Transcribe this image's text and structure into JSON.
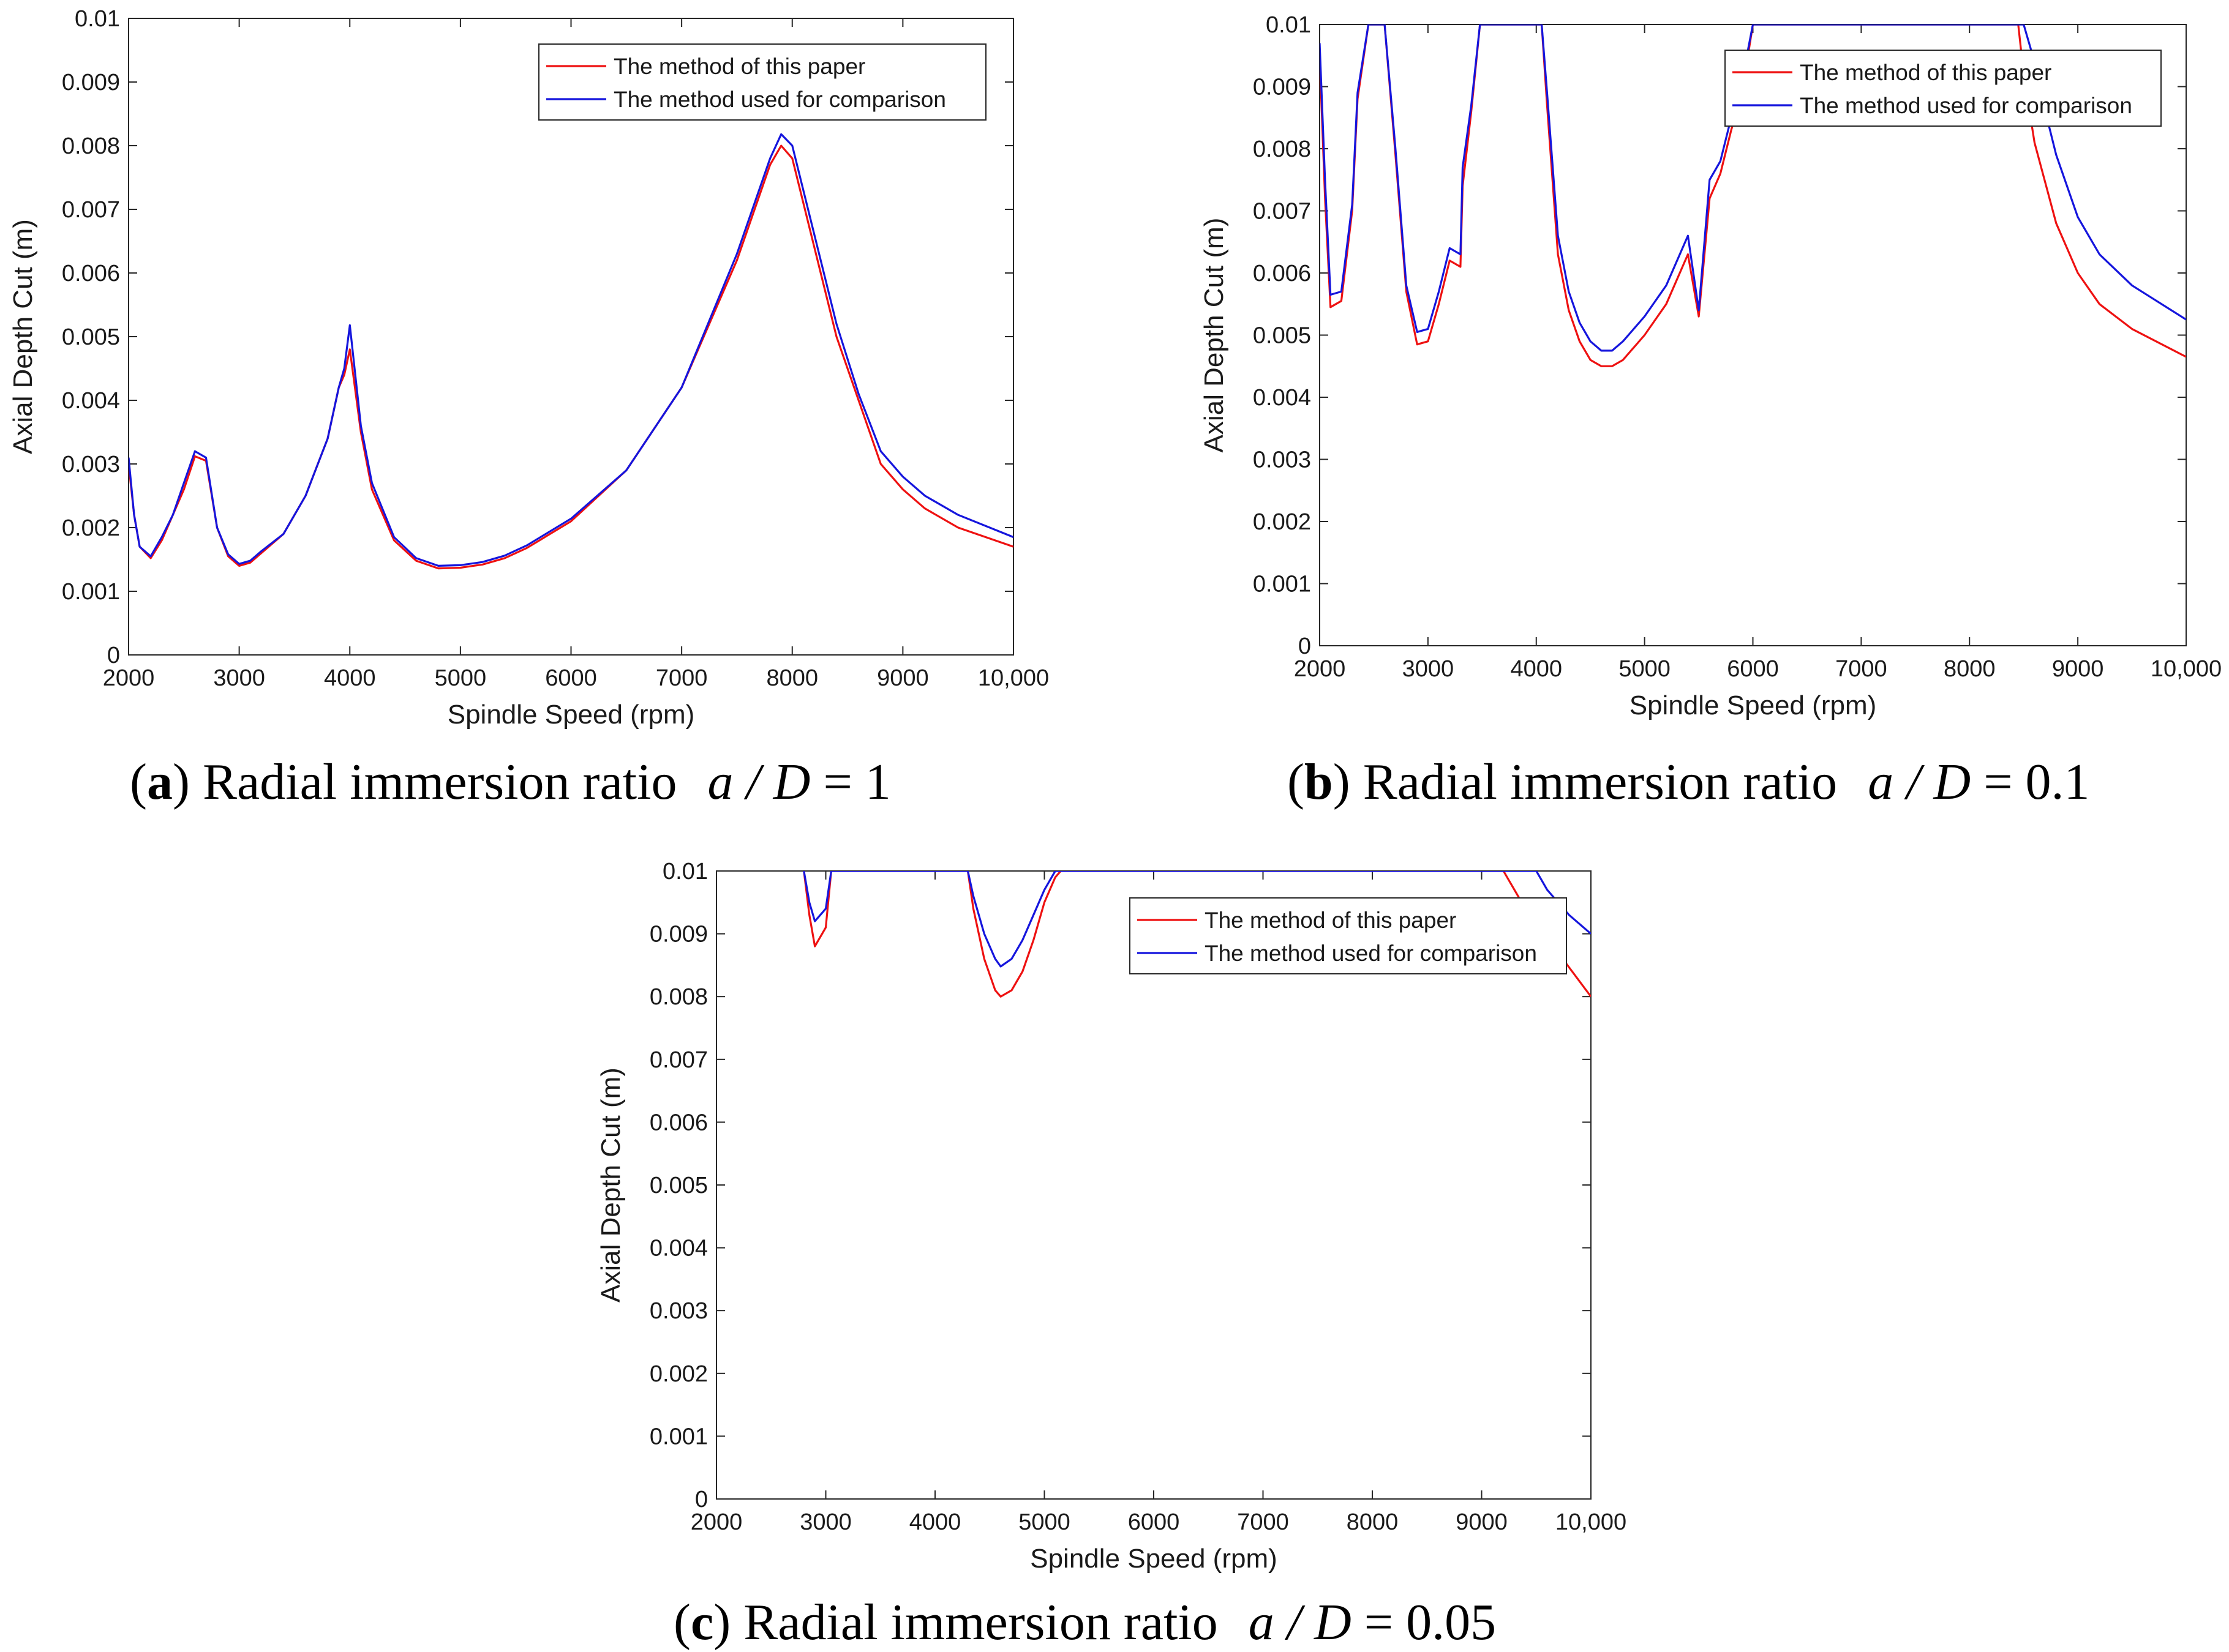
{
  "figure": {
    "colors": {
      "method_paper": "#ee1111",
      "method_comparison": "#1515dd",
      "axes": "#262626"
    }
  },
  "chart_data": [
    {
      "id": "a",
      "type": "line",
      "caption": {
        "letter": "a",
        "text": "Radial immersion ratio",
        "math_lhs": "a / D",
        "math_rhs": "= 1"
      },
      "xlabel": "Spindle Speed (rpm)",
      "ylabel": "Axial Depth Cut (m)",
      "xlim": [
        2000,
        10000
      ],
      "ylim": [
        0,
        0.01
      ],
      "xticks": [
        2000,
        3000,
        4000,
        5000,
        6000,
        7000,
        8000,
        9000,
        10000
      ],
      "xtick_labels": [
        "2000",
        "3000",
        "4000",
        "5000",
        "6000",
        "7000",
        "8000",
        "9000",
        "10,000"
      ],
      "yticks": [
        0,
        0.001,
        0.002,
        0.003,
        0.004,
        0.005,
        0.006,
        0.007,
        0.008,
        0.009,
        0.01
      ],
      "ytick_labels": [
        "0",
        "0.001",
        "0.002",
        "0.003",
        "0.004",
        "0.005",
        "0.006",
        "0.007",
        "0.008",
        "0.009",
        "0.01"
      ],
      "legend_position": "top-right",
      "series": [
        {
          "name": "The method of this paper",
          "color": "#ee1111",
          "x": [
            2000,
            2050,
            2100,
            2200,
            2300,
            2400,
            2500,
            2600,
            2700,
            2800,
            2900,
            3000,
            3100,
            3200,
            3400,
            3600,
            3800,
            3900,
            3950,
            4000,
            4100,
            4200,
            4400,
            4600,
            4800,
            5000,
            5200,
            5400,
            5600,
            6000,
            6500,
            7000,
            7500,
            7800,
            7900,
            8000,
            8200,
            8400,
            8600,
            8800,
            9000,
            9200,
            9500,
            10000
          ],
          "y": [
            0.003,
            0.0022,
            0.0017,
            0.00152,
            0.0018,
            0.0022,
            0.0026,
            0.00312,
            0.00305,
            0.002,
            0.00155,
            0.0014,
            0.00145,
            0.0016,
            0.0019,
            0.0025,
            0.0034,
            0.0042,
            0.0044,
            0.0048,
            0.0035,
            0.0026,
            0.0018,
            0.00148,
            0.00136,
            0.00137,
            0.00142,
            0.00152,
            0.00168,
            0.0021,
            0.0029,
            0.0042,
            0.0062,
            0.0077,
            0.008,
            0.0078,
            0.0064,
            0.005,
            0.004,
            0.003,
            0.0026,
            0.0023,
            0.002,
            0.0017
          ]
        },
        {
          "name": "The method used for comparison",
          "color": "#1515dd",
          "x": [
            2000,
            2050,
            2100,
            2200,
            2300,
            2400,
            2500,
            2600,
            2700,
            2800,
            2900,
            3000,
            3100,
            3200,
            3400,
            3600,
            3800,
            3900,
            3950,
            4000,
            4100,
            4200,
            4400,
            4600,
            4800,
            5000,
            5200,
            5400,
            5600,
            6000,
            6500,
            7000,
            7500,
            7800,
            7900,
            8000,
            8200,
            8400,
            8600,
            8800,
            9000,
            9200,
            9500,
            10000
          ],
          "y": [
            0.0031,
            0.0022,
            0.0017,
            0.00155,
            0.00185,
            0.0022,
            0.0027,
            0.0032,
            0.0031,
            0.002,
            0.00158,
            0.00143,
            0.00148,
            0.00163,
            0.0019,
            0.0025,
            0.0034,
            0.0042,
            0.0045,
            0.00518,
            0.0036,
            0.0027,
            0.00185,
            0.00152,
            0.0014,
            0.00141,
            0.00146,
            0.00156,
            0.00172,
            0.00214,
            0.0029,
            0.0042,
            0.0063,
            0.0078,
            0.00818,
            0.008,
            0.0066,
            0.0052,
            0.0041,
            0.0032,
            0.0028,
            0.0025,
            0.0022,
            0.00185
          ]
        }
      ]
    },
    {
      "id": "b",
      "type": "line",
      "caption": {
        "letter": "b",
        "text": "Radial immersion ratio",
        "math_lhs": "a / D",
        "math_rhs": "= 0.1"
      },
      "xlabel": "Spindle Speed (rpm)",
      "ylabel": "Axial Depth Cut (m)",
      "xlim": [
        2000,
        10000
      ],
      "ylim": [
        0,
        0.01
      ],
      "xticks": [
        2000,
        3000,
        4000,
        5000,
        6000,
        7000,
        8000,
        9000,
        10000
      ],
      "xtick_labels": [
        "2000",
        "3000",
        "4000",
        "5000",
        "6000",
        "7000",
        "8000",
        "9000",
        "10,000"
      ],
      "yticks": [
        0,
        0.001,
        0.002,
        0.003,
        0.004,
        0.005,
        0.006,
        0.007,
        0.008,
        0.009,
        0.01
      ],
      "ytick_labels": [
        "0",
        "0.001",
        "0.002",
        "0.003",
        "0.004",
        "0.005",
        "0.006",
        "0.007",
        "0.008",
        "0.009",
        "0.01"
      ],
      "legend_position": "top-right",
      "series": [
        {
          "name": "The method of this paper",
          "color": "#ee1111",
          "x": [
            2000,
            2050,
            2100,
            2200,
            2300,
            2350,
            2450,
            2600,
            2700,
            2800,
            2900,
            3000,
            3100,
            3200,
            3300,
            3320,
            3400,
            3480,
            4050,
            4100,
            4200,
            4300,
            4400,
            4500,
            4600,
            4700,
            4800,
            5000,
            5200,
            5400,
            5500,
            5600,
            5700,
            5800,
            5900,
            6000,
            8450,
            8500,
            8600,
            8800,
            9000,
            9200,
            9500,
            10000
          ],
          "y": [
            0.0095,
            0.0072,
            0.00545,
            0.00555,
            0.007,
            0.0088,
            0.01,
            0.01,
            0.0079,
            0.0057,
            0.00485,
            0.0049,
            0.0055,
            0.0062,
            0.0061,
            0.0074,
            0.0086,
            0.01,
            0.01,
            0.0087,
            0.0063,
            0.0054,
            0.0049,
            0.0046,
            0.0045,
            0.0045,
            0.0046,
            0.005,
            0.0055,
            0.0063,
            0.0053,
            0.0072,
            0.0076,
            0.0083,
            0.0089,
            0.01,
            0.01,
            0.0092,
            0.0081,
            0.0068,
            0.006,
            0.0055,
            0.0051,
            0.00465
          ]
        },
        {
          "name": "The method used for comparison",
          "color": "#1515dd",
          "x": [
            2000,
            2050,
            2100,
            2200,
            2300,
            2350,
            2450,
            2600,
            2700,
            2800,
            2900,
            3000,
            3100,
            3200,
            3300,
            3320,
            3400,
            3480,
            4050,
            4100,
            4200,
            4300,
            4400,
            4500,
            4600,
            4700,
            4800,
            5000,
            5200,
            5400,
            5500,
            5600,
            5700,
            5800,
            5900,
            6000,
            8500,
            8600,
            8700,
            8800,
            9000,
            9200,
            9500,
            10000
          ],
          "y": [
            0.0097,
            0.0075,
            0.00565,
            0.0057,
            0.0071,
            0.0089,
            0.01,
            0.01,
            0.008,
            0.0058,
            0.00505,
            0.0051,
            0.0057,
            0.0064,
            0.0063,
            0.0077,
            0.0087,
            0.01,
            0.01,
            0.0089,
            0.0066,
            0.0057,
            0.0052,
            0.0049,
            0.00475,
            0.00475,
            0.0049,
            0.0053,
            0.0058,
            0.0066,
            0.0054,
            0.0075,
            0.0078,
            0.0085,
            0.0091,
            0.01,
            0.01,
            0.0094,
            0.0086,
            0.0079,
            0.0069,
            0.0063,
            0.0058,
            0.00525
          ]
        }
      ]
    },
    {
      "id": "c",
      "type": "line",
      "caption": {
        "letter": "c",
        "text": "Radial immersion ratio",
        "math_lhs": "a / D",
        "math_rhs": "= 0.05"
      },
      "xlabel": "Spindle Speed (rpm)",
      "ylabel": "Axial Depth Cut (m)",
      "xlim": [
        2000,
        10000
      ],
      "ylim": [
        0,
        0.01
      ],
      "xticks": [
        2000,
        3000,
        4000,
        5000,
        6000,
        7000,
        8000,
        9000,
        10000
      ],
      "xtick_labels": [
        "2000",
        "3000",
        "4000",
        "5000",
        "6000",
        "7000",
        "8000",
        "9000",
        "10,000"
      ],
      "yticks": [
        0,
        0.001,
        0.002,
        0.003,
        0.004,
        0.005,
        0.006,
        0.007,
        0.008,
        0.009,
        0.01
      ],
      "ytick_labels": [
        "0",
        "0.001",
        "0.002",
        "0.003",
        "0.004",
        "0.005",
        "0.006",
        "0.007",
        "0.008",
        "0.009",
        "0.01"
      ],
      "legend_position": "top-right",
      "series": [
        {
          "name": "The method of this paper",
          "color": "#ee1111",
          "x": [
            2800,
            2850,
            2900,
            3000,
            3050,
            4300,
            4350,
            4450,
            4550,
            4600,
            4700,
            4800,
            4900,
            5000,
            5100,
            5150,
            9200,
            9300,
            9500,
            9700,
            10000
          ],
          "y": [
            0.01,
            0.0093,
            0.0088,
            0.0091,
            0.01,
            0.01,
            0.0094,
            0.0086,
            0.0081,
            0.008,
            0.0081,
            0.0084,
            0.0089,
            0.0095,
            0.0099,
            0.01,
            0.01,
            0.0097,
            0.0091,
            0.0087,
            0.008
          ]
        },
        {
          "name": "The method used for comparison",
          "color": "#1515dd",
          "x": [
            2800,
            2850,
            2900,
            3000,
            3050,
            4300,
            4350,
            4450,
            4550,
            4600,
            4700,
            4800,
            4900,
            5000,
            5100,
            5150,
            9500,
            9600,
            9700,
            9800,
            10000
          ],
          "y": [
            0.01,
            0.0095,
            0.0092,
            0.0094,
            0.01,
            0.01,
            0.0096,
            0.009,
            0.0086,
            0.00848,
            0.0086,
            0.0089,
            0.0093,
            0.0097,
            0.01,
            0.01,
            0.01,
            0.0097,
            0.0095,
            0.0093,
            0.009
          ]
        }
      ]
    }
  ]
}
